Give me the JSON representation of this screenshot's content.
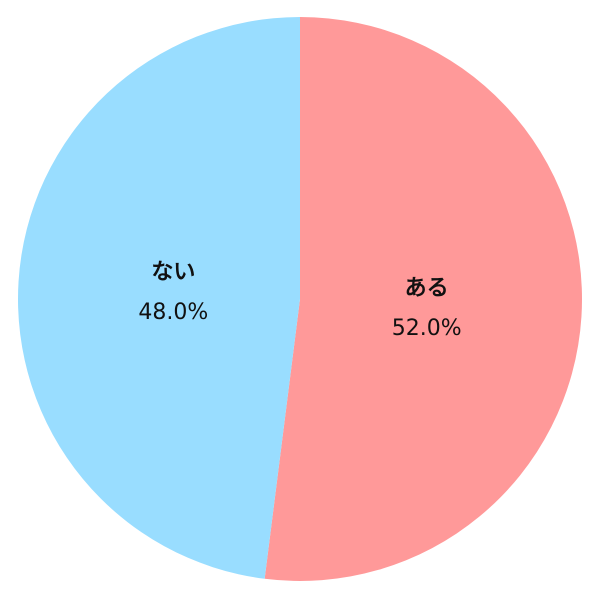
{
  "chart_data": {
    "type": "pie",
    "start": "top",
    "direction": "clockwise",
    "slices": [
      {
        "label": "ある",
        "value": 52.0,
        "display": "52.0%",
        "color": "#FF9999"
      },
      {
        "label": "ない",
        "value": 48.0,
        "display": "48.0%",
        "color": "#99DDFF"
      }
    ]
  }
}
